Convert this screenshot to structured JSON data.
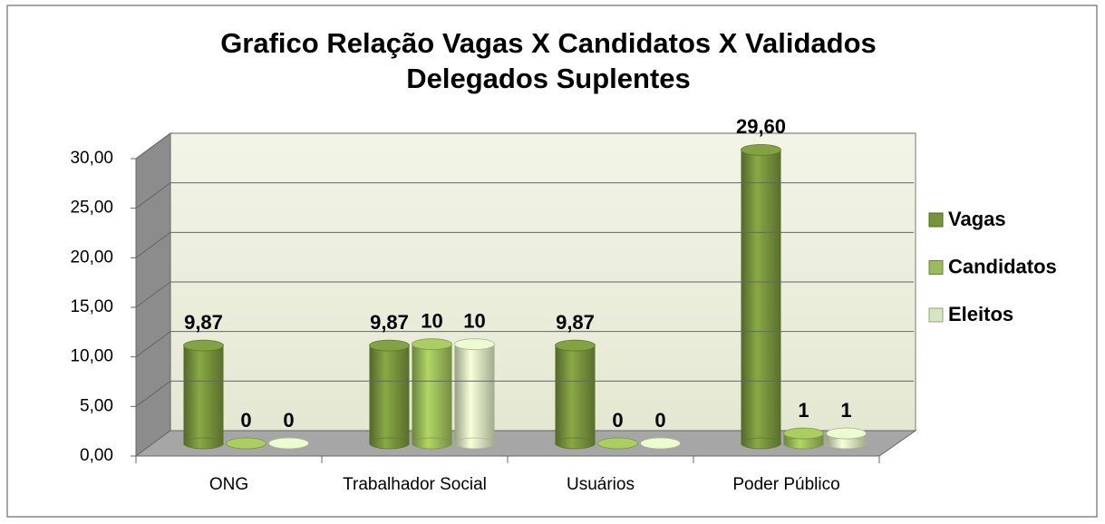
{
  "chart_data": {
    "type": "bar3d",
    "title": "Grafico Relação Vagas X Candidatos X Validados",
    "subtitle": "Delegados Suplentes",
    "categories": [
      "ONG",
      "Trabalhador Social",
      "Usuários",
      "Poder Público"
    ],
    "series": [
      {
        "name": "Vagas",
        "color": "#77933c",
        "values": [
          9.87,
          9.87,
          9.87,
          29.6
        ],
        "value_labels": [
          "9,87",
          "9,87",
          "9,87",
          "29,60"
        ]
      },
      {
        "name": "Candidatos",
        "color": "#9bbb59",
        "values": [
          0,
          10,
          0,
          1
        ]
      },
      {
        "name": "Eleitos",
        "color": "#d7e4bd",
        "values": [
          0,
          10,
          0,
          1
        ]
      }
    ],
    "ylim": [
      0,
      30
    ],
    "yticks": [
      {
        "value": 0,
        "label": "0,00"
      },
      {
        "value": 5,
        "label": "5,00"
      },
      {
        "value": 10,
        "label": "10,00"
      },
      {
        "value": 15,
        "label": "15,00"
      },
      {
        "value": 20,
        "label": "20,00"
      },
      {
        "value": 25,
        "label": "25,00"
      },
      {
        "value": 30,
        "label": "30,00"
      }
    ],
    "grid": true,
    "legend": "right"
  }
}
